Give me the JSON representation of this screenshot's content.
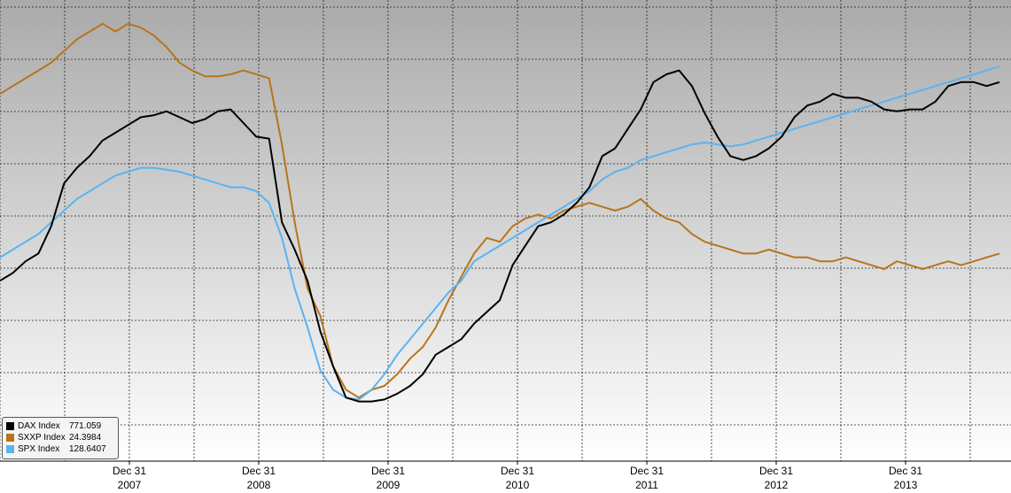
{
  "chart_data": {
    "type": "line",
    "x_labels": [
      {
        "day": "Dec 31",
        "year": "2007"
      },
      {
        "day": "Dec 31",
        "year": "2008"
      },
      {
        "day": "Dec 31",
        "year": "2009"
      },
      {
        "day": "Dec 31",
        "year": "2010"
      },
      {
        "day": "Dec 31",
        "year": "2011"
      },
      {
        "day": "Dec 31",
        "year": "2012"
      },
      {
        "day": "Dec 31",
        "year": "2013"
      }
    ],
    "x_range": [
      2006.2,
      2014.0
    ],
    "y_range": [
      0,
      100
    ],
    "grid": true,
    "legend_position": "bottom-left",
    "series": [
      {
        "name": "DAX Index",
        "last_value": "771.059",
        "color": "#000000",
        "points": [
          [
            2006.2,
            37
          ],
          [
            2006.3,
            39
          ],
          [
            2006.4,
            42
          ],
          [
            2006.5,
            44
          ],
          [
            2006.6,
            51
          ],
          [
            2006.7,
            62
          ],
          [
            2006.8,
            66
          ],
          [
            2006.9,
            69
          ],
          [
            2007.0,
            73
          ],
          [
            2007.1,
            75
          ],
          [
            2007.2,
            77
          ],
          [
            2007.3,
            79
          ],
          [
            2007.4,
            79.5
          ],
          [
            2007.5,
            80.5
          ],
          [
            2007.6,
            79
          ],
          [
            2007.7,
            77.5
          ],
          [
            2007.8,
            78.5
          ],
          [
            2007.9,
            80.5
          ],
          [
            2008.0,
            81
          ],
          [
            2008.1,
            77.5
          ],
          [
            2008.2,
            74
          ],
          [
            2008.3,
            73.5
          ],
          [
            2008.4,
            52
          ],
          [
            2008.5,
            45
          ],
          [
            2008.6,
            37
          ],
          [
            2008.7,
            24
          ],
          [
            2008.8,
            15
          ],
          [
            2008.9,
            7
          ],
          [
            2009.0,
            6
          ],
          [
            2009.1,
            6
          ],
          [
            2009.2,
            6.5
          ],
          [
            2009.3,
            8
          ],
          [
            2009.4,
            10
          ],
          [
            2009.5,
            13
          ],
          [
            2009.6,
            18
          ],
          [
            2009.7,
            20
          ],
          [
            2009.8,
            22
          ],
          [
            2009.9,
            26
          ],
          [
            2010.0,
            29
          ],
          [
            2010.1,
            32
          ],
          [
            2010.2,
            41
          ],
          [
            2010.3,
            46
          ],
          [
            2010.4,
            51
          ],
          [
            2010.5,
            52
          ],
          [
            2010.6,
            54
          ],
          [
            2010.7,
            57
          ],
          [
            2010.8,
            61
          ],
          [
            2010.9,
            69
          ],
          [
            2011.0,
            71
          ],
          [
            2011.1,
            76
          ],
          [
            2011.2,
            81
          ],
          [
            2011.3,
            88
          ],
          [
            2011.4,
            90
          ],
          [
            2011.5,
            91
          ],
          [
            2011.6,
            87
          ],
          [
            2011.7,
            80
          ],
          [
            2011.8,
            74
          ],
          [
            2011.9,
            69
          ],
          [
            2012.0,
            68
          ],
          [
            2012.1,
            69
          ],
          [
            2012.2,
            71
          ],
          [
            2012.3,
            74
          ],
          [
            2012.4,
            79
          ],
          [
            2012.5,
            82
          ],
          [
            2012.6,
            83
          ],
          [
            2012.7,
            85
          ],
          [
            2012.8,
            84
          ],
          [
            2012.9,
            84
          ],
          [
            2013.0,
            83
          ],
          [
            2013.1,
            81
          ],
          [
            2013.2,
            80.5
          ],
          [
            2013.3,
            81
          ],
          [
            2013.4,
            81
          ],
          [
            2013.5,
            83
          ],
          [
            2013.6,
            87
          ],
          [
            2013.7,
            88
          ],
          [
            2013.8,
            88
          ],
          [
            2013.9,
            87
          ],
          [
            2014.0,
            88
          ]
        ]
      },
      {
        "name": "SXXP Index",
        "last_value": "24.3984",
        "color": "#b8741a",
        "points": [
          [
            2006.2,
            85
          ],
          [
            2006.3,
            87
          ],
          [
            2006.4,
            89
          ],
          [
            2006.5,
            91
          ],
          [
            2006.6,
            93
          ],
          [
            2006.7,
            96
          ],
          [
            2006.8,
            99
          ],
          [
            2006.9,
            101
          ],
          [
            2007.0,
            103
          ],
          [
            2007.1,
            101
          ],
          [
            2007.2,
            103
          ],
          [
            2007.3,
            102
          ],
          [
            2007.4,
            100
          ],
          [
            2007.5,
            97
          ],
          [
            2007.6,
            93
          ],
          [
            2007.7,
            91
          ],
          [
            2007.8,
            89.5
          ],
          [
            2007.9,
            89.5
          ],
          [
            2008.0,
            90
          ],
          [
            2008.1,
            91
          ],
          [
            2008.2,
            90
          ],
          [
            2008.3,
            89
          ],
          [
            2008.4,
            72
          ],
          [
            2008.5,
            52
          ],
          [
            2008.6,
            35
          ],
          [
            2008.7,
            28
          ],
          [
            2008.8,
            15
          ],
          [
            2008.9,
            9
          ],
          [
            2009.0,
            7
          ],
          [
            2009.1,
            9
          ],
          [
            2009.2,
            10
          ],
          [
            2009.3,
            13
          ],
          [
            2009.4,
            17
          ],
          [
            2009.5,
            20
          ],
          [
            2009.6,
            25
          ],
          [
            2009.7,
            32
          ],
          [
            2009.8,
            38
          ],
          [
            2009.9,
            44
          ],
          [
            2010.0,
            48
          ],
          [
            2010.1,
            47
          ],
          [
            2010.2,
            51
          ],
          [
            2010.3,
            53
          ],
          [
            2010.4,
            54
          ],
          [
            2010.5,
            53
          ],
          [
            2010.6,
            55
          ],
          [
            2010.7,
            56
          ],
          [
            2010.8,
            57
          ],
          [
            2010.9,
            56
          ],
          [
            2011.0,
            55
          ],
          [
            2011.1,
            56
          ],
          [
            2011.2,
            58
          ],
          [
            2011.3,
            55
          ],
          [
            2011.4,
            53
          ],
          [
            2011.5,
            52
          ],
          [
            2011.6,
            49
          ],
          [
            2011.7,
            47
          ],
          [
            2011.8,
            46
          ],
          [
            2011.9,
            45
          ],
          [
            2012.0,
            44
          ],
          [
            2012.1,
            44
          ],
          [
            2012.2,
            45
          ],
          [
            2012.3,
            44
          ],
          [
            2012.4,
            43
          ],
          [
            2012.5,
            43
          ],
          [
            2012.6,
            42
          ],
          [
            2012.7,
            42
          ],
          [
            2012.8,
            43
          ],
          [
            2012.9,
            42
          ],
          [
            2013.0,
            41
          ],
          [
            2013.1,
            40
          ],
          [
            2013.2,
            42
          ],
          [
            2013.3,
            41
          ],
          [
            2013.4,
            40
          ],
          [
            2013.5,
            41
          ],
          [
            2013.6,
            42
          ],
          [
            2013.7,
            41
          ],
          [
            2013.8,
            42
          ],
          [
            2013.9,
            43
          ],
          [
            2014.0,
            44
          ]
        ]
      },
      {
        "name": "SPX Index",
        "last_value": "128.6407",
        "color": "#5ab4f0",
        "points": [
          [
            2006.2,
            43
          ],
          [
            2006.3,
            45
          ],
          [
            2006.4,
            47
          ],
          [
            2006.5,
            49
          ],
          [
            2006.6,
            52
          ],
          [
            2006.7,
            55
          ],
          [
            2006.8,
            58
          ],
          [
            2006.9,
            60
          ],
          [
            2007.0,
            62
          ],
          [
            2007.1,
            64
          ],
          [
            2007.2,
            65
          ],
          [
            2007.3,
            66
          ],
          [
            2007.4,
            66
          ],
          [
            2007.5,
            65.5
          ],
          [
            2007.6,
            65
          ],
          [
            2007.7,
            64
          ],
          [
            2007.8,
            63
          ],
          [
            2007.9,
            62
          ],
          [
            2008.0,
            61
          ],
          [
            2008.1,
            61
          ],
          [
            2008.2,
            60
          ],
          [
            2008.3,
            57
          ],
          [
            2008.4,
            48
          ],
          [
            2008.5,
            35
          ],
          [
            2008.6,
            25
          ],
          [
            2008.7,
            14
          ],
          [
            2008.8,
            9
          ],
          [
            2008.9,
            7
          ],
          [
            2009.0,
            6.5
          ],
          [
            2009.1,
            9
          ],
          [
            2009.2,
            13
          ],
          [
            2009.3,
            18
          ],
          [
            2009.4,
            22
          ],
          [
            2009.5,
            26
          ],
          [
            2009.6,
            30
          ],
          [
            2009.7,
            34
          ],
          [
            2009.8,
            37
          ],
          [
            2009.9,
            42
          ],
          [
            2010.0,
            44
          ],
          [
            2010.1,
            46
          ],
          [
            2010.2,
            48
          ],
          [
            2010.3,
            50
          ],
          [
            2010.4,
            52
          ],
          [
            2010.5,
            54
          ],
          [
            2010.6,
            56
          ],
          [
            2010.7,
            58
          ],
          [
            2010.8,
            60
          ],
          [
            2010.9,
            63
          ],
          [
            2011.0,
            65
          ],
          [
            2011.1,
            66
          ],
          [
            2011.2,
            68
          ],
          [
            2011.3,
            69
          ],
          [
            2011.4,
            70
          ],
          [
            2011.5,
            71
          ],
          [
            2011.6,
            72
          ],
          [
            2011.7,
            72.5
          ],
          [
            2011.8,
            72
          ],
          [
            2011.9,
            71.5
          ],
          [
            2012.0,
            72
          ],
          [
            2012.1,
            73
          ],
          [
            2012.2,
            74
          ],
          [
            2012.3,
            75
          ],
          [
            2012.4,
            76
          ],
          [
            2012.5,
            77
          ],
          [
            2012.6,
            78
          ],
          [
            2012.7,
            79
          ],
          [
            2012.8,
            80
          ],
          [
            2012.9,
            81
          ],
          [
            2013.0,
            82
          ],
          [
            2013.1,
            83
          ],
          [
            2013.2,
            84
          ],
          [
            2013.3,
            85
          ],
          [
            2013.4,
            86
          ],
          [
            2013.5,
            87
          ],
          [
            2013.6,
            88
          ],
          [
            2013.7,
            89
          ],
          [
            2013.8,
            90
          ],
          [
            2013.9,
            91
          ],
          [
            2014.0,
            92
          ]
        ]
      }
    ]
  }
}
